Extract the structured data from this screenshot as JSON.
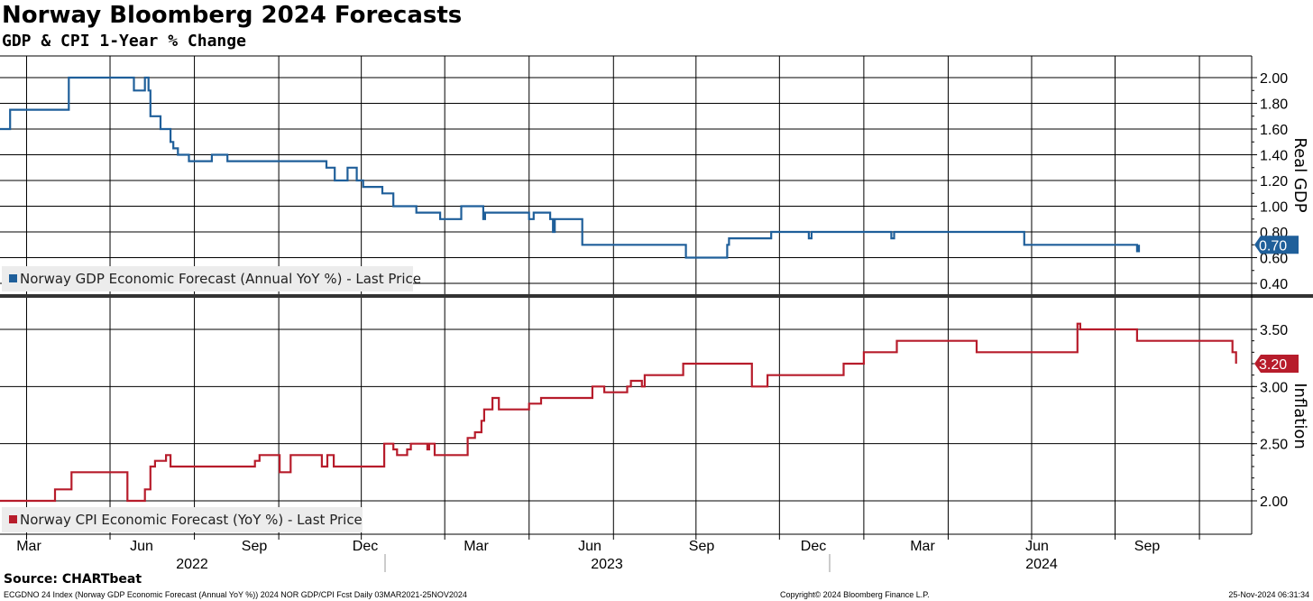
{
  "header": {
    "title": "Norway Bloomberg 2024 Forecasts",
    "subtitle": "GDP & CPI 1-Year % Change"
  },
  "footer": {
    "source": "Source: CHARTbeat",
    "left": "ECGDNO 24 Index (Norway GDP Economic Forecast (Annual YoY %)) 2024 NOR GDP/CPI Fcst  Daily 03MAR2021-25NOV2024",
    "mid": "Copyright© 2024 Bloomberg Finance L.P.",
    "right": "25-Nov-2024 06:31:34"
  },
  "colors": {
    "gdp": "#1f5f9a",
    "cpi": "#b71c2b"
  },
  "chart_data": [
    {
      "type": "line",
      "panel": "top",
      "ylabel": "Real GDP",
      "ylim": [
        0.35,
        2.12
      ],
      "yticks": [
        "2.00",
        "1.80",
        "1.60",
        "1.40",
        "1.20",
        "1.00",
        "0.80",
        "0.60",
        "0.40"
      ],
      "grid": true,
      "legend_position": "bottom-left",
      "last_value_label": "0.70",
      "series": [
        {
          "name": "Norway GDP Economic Forecast (Annual YoY %) - Last Price",
          "color": "#1f5f9a",
          "x": [
            "2021-03-03",
            "2021-03-14",
            "2021-05-14",
            "2021-05-17",
            "2021-07-20",
            "2021-07-27",
            "2021-08-05",
            "2021-08-08",
            "2021-08-12",
            "2021-08-14",
            "2021-08-25",
            "2021-09-02",
            "2021-09-05",
            "2021-09-08",
            "2021-09-13",
            "2021-09-25",
            "2021-10-20",
            "2021-10-30",
            "2021-11-06",
            "2022-02-22",
            "2022-03-01",
            "2022-03-03",
            "2022-03-17",
            "2022-03-20",
            "2022-03-27",
            "2022-04-03",
            "2022-04-24",
            "2022-05-06",
            "2022-05-31",
            "2022-06-26",
            "2022-06-29",
            "2022-07-19",
            "2022-07-22",
            "2022-08-12",
            "2022-08-14",
            "2022-08-30",
            "2022-10-01",
            "2022-10-06",
            "2022-10-24",
            "2022-10-27",
            "2022-10-29",
            "2022-11-28",
            "2023-01-27",
            "2023-03-21",
            "2023-03-24",
            "2023-05-05",
            "2023-05-07",
            "2023-06-15",
            "2023-06-22",
            "2023-08-02",
            "2023-08-05",
            "2023-09-07",
            "2023-09-13",
            "2023-10-31",
            "2023-11-03",
            "2023-11-05",
            "2024-03-24",
            "2024-04-01",
            "2024-04-09",
            "2024-04-12",
            "2024-04-15",
            "2024-04-18",
            "2024-05-21",
            "2024-07-16",
            "2024-07-25",
            "2024-07-27"
          ],
          "y": [
            1.6,
            1.75,
            1.75,
            2.0,
            2.0,
            1.9,
            1.9,
            2.0,
            1.9,
            1.7,
            1.6,
            1.6,
            1.5,
            1.45,
            1.4,
            1.35,
            1.4,
            1.4,
            1.35,
            1.3,
            1.3,
            1.2,
            1.3,
            1.3,
            1.2,
            1.15,
            1.1,
            1.0,
            0.95,
            0.9,
            0.9,
            1.0,
            1.0,
            0.9,
            0.95,
            0.95,
            0.9,
            0.95,
            0.9,
            0.8,
            0.9,
            0.7,
            0.7,
            0.6,
            0.6,
            0.7,
            0.75,
            0.75,
            0.8,
            0.75,
            0.8,
            0.8,
            0.8,
            0.75,
            0.8,
            0.8,
            0.7,
            0.7,
            0.7,
            0.7,
            0.7,
            0.7,
            0.7,
            0.7,
            0.65,
            0.7
          ]
        }
      ]
    },
    {
      "type": "line",
      "panel": "bottom",
      "ylabel": "Inflation",
      "ylim": [
        1.85,
        3.72
      ],
      "yticks": [
        "3.50",
        "3.00",
        "2.50",
        "2.00"
      ],
      "grid": true,
      "legend_position": "bottom-left",
      "last_value_label": "3.20",
      "x_ticks": [
        "Mar",
        "Jun",
        "Sep",
        "Dec",
        "Mar",
        "Jun",
        "Sep",
        "Dec",
        "Mar",
        "Jun",
        "Sep"
      ],
      "x_years": [
        "2022",
        "2023",
        "2024"
      ],
      "series": [
        {
          "name": "Norway CPI Economic Forecast (YoY %) - Last Price",
          "color": "#b71c2b",
          "x": [
            "2021-03-03",
            "2021-04-10",
            "2021-05-02",
            "2021-05-20",
            "2021-05-25",
            "2021-07-20",
            "2021-07-25",
            "2021-08-08",
            "2021-08-10",
            "2021-08-14",
            "2021-08-17",
            "2021-08-19",
            "2021-08-31",
            "2021-09-03",
            "2021-09-05",
            "2021-11-26",
            "2021-12-06",
            "2021-12-11",
            "2021-12-18",
            "2022-01-02",
            "2022-01-14",
            "2022-02-12",
            "2022-02-17",
            "2022-02-23",
            "2022-03-02",
            "2022-04-12",
            "2022-04-26",
            "2022-05-06",
            "2022-05-10",
            "2022-05-13",
            "2022-05-21",
            "2022-05-25",
            "2022-06-12",
            "2022-06-14",
            "2022-06-18",
            "2022-06-20",
            "2022-07-04",
            "2022-07-26",
            "2022-08-03",
            "2022-08-08",
            "2022-08-10",
            "2022-08-13",
            "2022-08-15",
            "2022-08-22",
            "2022-08-26",
            "2022-08-29",
            "2022-09-05",
            "2022-09-09",
            "2022-10-01",
            "2022-10-14",
            "2022-12-09",
            "2022-12-19",
            "2022-12-22",
            "2023-01-16",
            "2023-01-20",
            "2023-01-22",
            "2023-02-01",
            "2023-02-04",
            "2023-03-08",
            "2023-03-18",
            "2023-05-23",
            "2023-06-01",
            "2023-06-18",
            "2023-08-10",
            "2023-08-25",
            "2023-09-09",
            "2023-10-01",
            "2023-11-06",
            "2023-11-12",
            "2023-12-30",
            "2024-02-01",
            "2024-05-21",
            "2024-05-24",
            "2024-07-14",
            "2024-07-25",
            "2024-09-21",
            "2024-11-06",
            "2024-11-10"
          ],
          "y": [
            2.0,
            2.0,
            2.1,
            2.25,
            2.25,
            2.0,
            2.0,
            2.1,
            2.1,
            2.3,
            2.3,
            2.35,
            2.4,
            2.4,
            2.3,
            2.3,
            2.35,
            2.4,
            2.4,
            2.25,
            2.4,
            2.4,
            2.3,
            2.4,
            2.3,
            2.3,
            2.5,
            2.45,
            2.4,
            2.4,
            2.45,
            2.5,
            2.45,
            2.5,
            2.5,
            2.4,
            2.4,
            2.55,
            2.6,
            2.6,
            2.7,
            2.8,
            2.8,
            2.9,
            2.9,
            2.8,
            2.8,
            2.8,
            2.85,
            2.9,
            3.0,
            3.0,
            2.95,
            3.0,
            3.05,
            3.05,
            3.0,
            3.1,
            3.1,
            3.2,
            3.2,
            3.0,
            3.1,
            3.1,
            3.1,
            3.2,
            3.3,
            3.4,
            3.4,
            3.4,
            3.3,
            3.55,
            3.5,
            3.5,
            3.4,
            3.4,
            3.3,
            3.2
          ]
        }
      ]
    }
  ]
}
